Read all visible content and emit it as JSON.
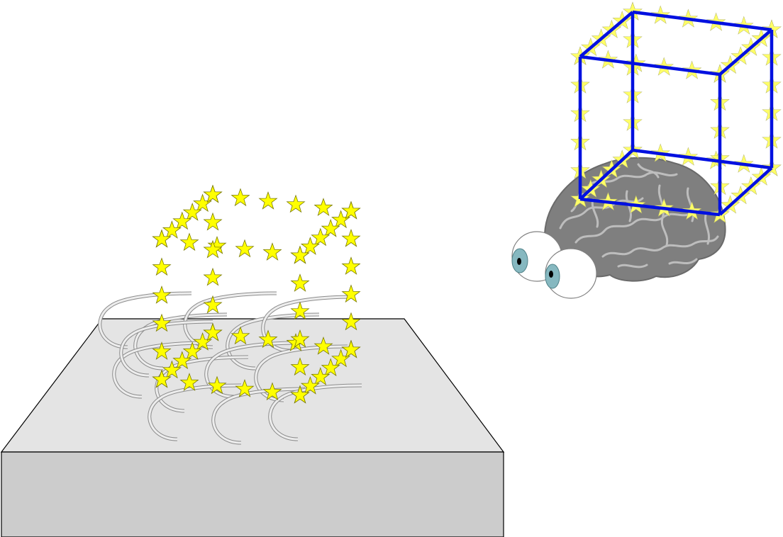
{
  "scene": {
    "colors": {
      "star_fill": "#ffff00",
      "star_outline": "#7a7a00",
      "wireframe": "#0010e0",
      "slab_top": "#e4e4e4",
      "slab_front": "#cccccc",
      "brain": "#7f7f7f",
      "iris": "#86b8c0"
    },
    "icons": {
      "stimulus": "star-outlined-cube",
      "surface": "slab-with-arc-imprints",
      "perceiver": "brain-with-two-eyes",
      "percept": "wireframe-cube"
    }
  }
}
